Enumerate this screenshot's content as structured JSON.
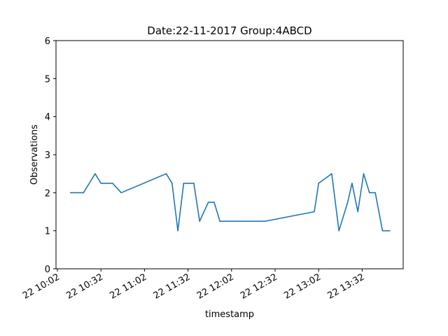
{
  "chart_data": {
    "type": "line",
    "title": "Date:22-11-2017  Group:4ABCD",
    "xlabel": "timestamp",
    "ylabel": "Observations",
    "ylim": [
      0,
      6
    ],
    "xlim": [
      "22 10:02",
      "22 13:32"
    ],
    "grid": false,
    "color": "#1f77b4",
    "yticks": [
      0,
      1,
      2,
      3,
      4,
      5,
      6
    ],
    "xticks": [
      "22 10:02",
      "22 10:32",
      "22 11:02",
      "22 11:32",
      "22 12:02",
      "22 12:32",
      "22 13:02",
      "22 13:32"
    ],
    "series": [
      {
        "x": [
          "22 10:11",
          "22 10:20",
          "22 10:28",
          "22 10:32",
          "22 10:40",
          "22 10:46",
          "22 11:17",
          "22 11:21",
          "22 11:25",
          "22 11:29",
          "22 11:36",
          "22 11:40",
          "22 11:46",
          "22 11:50",
          "22 11:54",
          "22 12:25",
          "22 12:59",
          "22 13:02",
          "22 13:11",
          "22 13:16",
          "22 13:22",
          "22 13:25",
          "22 13:29",
          "22 13:33",
          "22 13:37",
          "22 13:41",
          "22 13:46",
          "22 13:51"
        ],
        "y": [
          2.0,
          2.0,
          2.5,
          2.25,
          2.25,
          2.0,
          2.5,
          2.25,
          1.0,
          2.25,
          2.25,
          1.25,
          1.75,
          1.75,
          1.25,
          1.25,
          1.5,
          2.25,
          2.5,
          1.0,
          1.75,
          2.25,
          1.5,
          2.5,
          2.0,
          2.0,
          1.0,
          1.0
        ]
      }
    ]
  }
}
